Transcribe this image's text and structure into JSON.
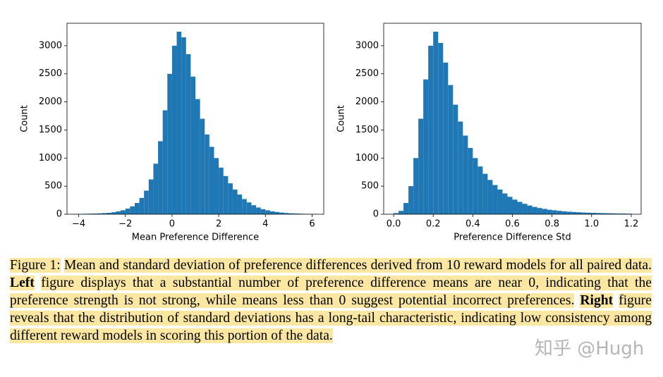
{
  "chart_data": [
    {
      "type": "histogram",
      "xlabel": "Mean Preference Difference",
      "ylabel": "Count",
      "color": "#1f77b4",
      "bins": [
        -4.2,
        -4.0,
        -3.8,
        -3.6,
        -3.4,
        -3.2,
        -3.0,
        -2.8,
        -2.6,
        -2.4,
        -2.2,
        -2.0,
        -1.8,
        -1.6,
        -1.4,
        -1.2,
        -1.0,
        -0.8,
        -0.6,
        -0.4,
        -0.2,
        0,
        0.2,
        0.4,
        0.6,
        0.8,
        1.0,
        1.2,
        1.4,
        1.6,
        1.8,
        2.0,
        2.2,
        2.4,
        2.6,
        2.8,
        3.0,
        3.2,
        3.4,
        3.6,
        3.8,
        4.0,
        4.2,
        4.4,
        4.6,
        4.8,
        5.0,
        5.2,
        5.4,
        5.6,
        5.8,
        6.0,
        6.2
      ],
      "values": [
        5,
        5,
        8,
        10,
        12,
        15,
        20,
        25,
        35,
        50,
        70,
        100,
        140,
        200,
        290,
        420,
        620,
        900,
        1300,
        1850,
        2500,
        3000,
        3250,
        3150,
        2850,
        2450,
        2050,
        1700,
        1420,
        1200,
        1000,
        830,
        680,
        550,
        440,
        350,
        270,
        210,
        160,
        120,
        90,
        70,
        52,
        40,
        30,
        22,
        16,
        12,
        9,
        7,
        5,
        4
      ],
      "xlim": [
        -4.5,
        6.5
      ],
      "xticks": [
        {
          "value": -4,
          "label": "−4"
        },
        {
          "value": -2,
          "label": "−2"
        },
        0,
        2,
        4,
        6
      ],
      "ylim": [
        0,
        3400
      ],
      "yticks": [
        0,
        500,
        1000,
        1500,
        2000,
        2500,
        3000
      ]
    },
    {
      "type": "histogram",
      "xlabel": "Preference Difference Std",
      "ylabel": "Count",
      "color": "#1f77b4",
      "bins": [
        0,
        0.025,
        0.05,
        0.075,
        0.1,
        0.125,
        0.15,
        0.175,
        0.2,
        0.225,
        0.25,
        0.275,
        0.3,
        0.325,
        0.35,
        0.375,
        0.4,
        0.425,
        0.45,
        0.475,
        0.5,
        0.525,
        0.55,
        0.575,
        0.6,
        0.625,
        0.65,
        0.675,
        0.7,
        0.725,
        0.75,
        0.775,
        0.8,
        0.825,
        0.85,
        0.875,
        0.9,
        0.925,
        0.95,
        0.975,
        1.0,
        1.025,
        1.05,
        1.075,
        1.1,
        1.125,
        1.15,
        1.175,
        1.2
      ],
      "values": [
        20,
        60,
        200,
        500,
        1000,
        1700,
        2400,
        3000,
        3250,
        3050,
        2700,
        2300,
        1950,
        1650,
        1400,
        1180,
        1000,
        850,
        720,
        610,
        520,
        440,
        370,
        310,
        260,
        220,
        185,
        155,
        130,
        110,
        95,
        80,
        70,
        60,
        52,
        45,
        40,
        35,
        30,
        27,
        24,
        21,
        19,
        17,
        15,
        13,
        12,
        10
      ],
      "xlim": [
        -0.05,
        1.25
      ],
      "xticks": [
        {
          "value": 0,
          "label": "0.0"
        },
        0.2,
        0.4,
        0.6,
        0.8,
        {
          "value": 1,
          "label": "1.0"
        },
        1.2
      ],
      "ylim": [
        0,
        3400
      ],
      "yticks": [
        0,
        500,
        1000,
        1500,
        2000,
        2500,
        3000
      ]
    }
  ],
  "caption": {
    "label": "Figure 1:",
    "text1": "Mean and standard deviation of preference differences derived from 10 reward models for all paired data.",
    "bold1": "Left",
    "text2": "figure displays that a substantial number of preference difference means are near 0, indicating that the preference strength is not strong, while means less than 0 suggest potential incorrect preferences.",
    "bold2": "Right",
    "text3": "figure reveals that the distribution of standard deviations has a long-tail characteristic, indicating low consistency among different reward models in scoring this portion of the data."
  },
  "watermark": "知乎 @Hugh"
}
